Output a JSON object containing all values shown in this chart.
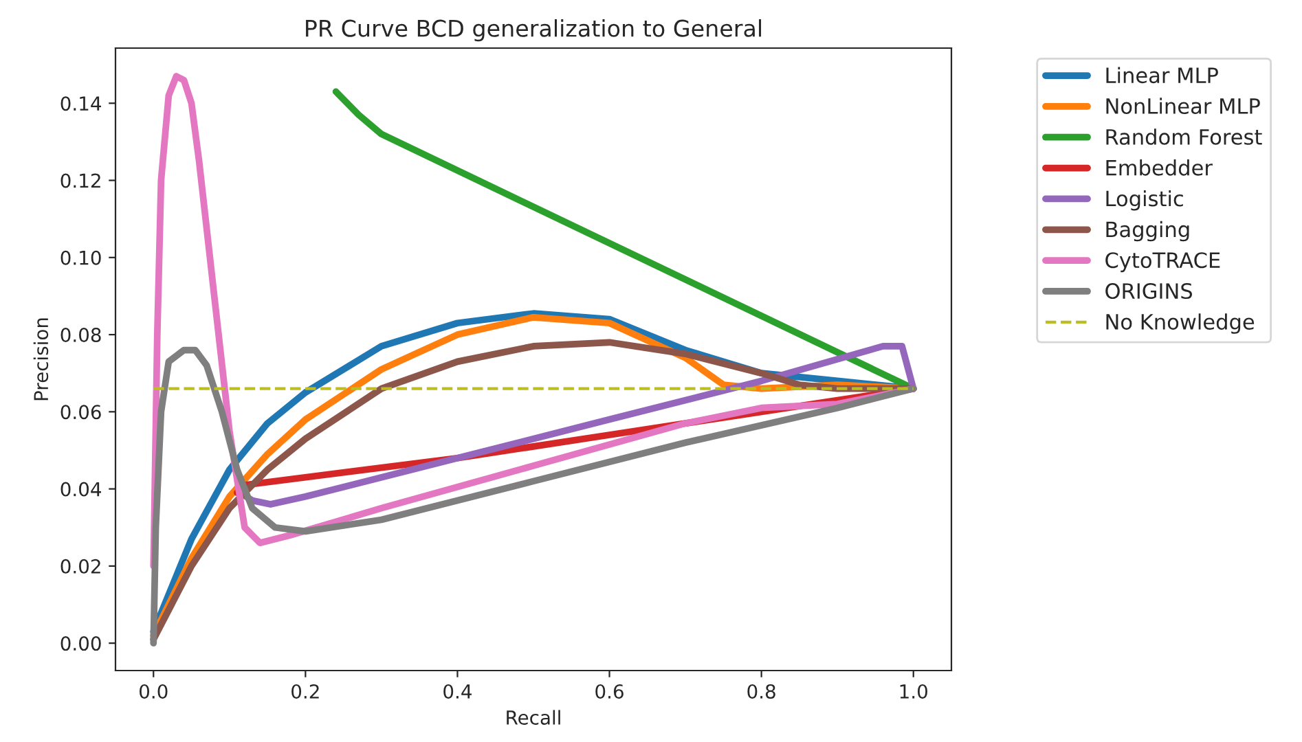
{
  "chart_data": {
    "type": "line",
    "title": "PR Curve BCD generalization to General",
    "xlabel": "Recall",
    "ylabel": "Precision",
    "xlim": [
      -0.05,
      1.05
    ],
    "ylim": [
      -0.0071,
      0.1543
    ],
    "xticks": [
      {
        "value": 0,
        "label": "0.0"
      },
      {
        "value": 0.2,
        "label": "0.2"
      },
      {
        "value": 0.4,
        "label": "0.4"
      },
      {
        "value": 0.6,
        "label": "0.6"
      },
      {
        "value": 0.8,
        "label": "0.8"
      },
      {
        "value": 1,
        "label": "1.0"
      }
    ],
    "yticks": [
      {
        "value": 0,
        "label": "0.00"
      },
      {
        "value": 0.02,
        "label": "0.02"
      },
      {
        "value": 0.04,
        "label": "0.04"
      },
      {
        "value": 0.06,
        "label": "0.06"
      },
      {
        "value": 0.08,
        "label": "0.08"
      },
      {
        "value": 0.1,
        "label": "0.10"
      },
      {
        "value": 0.12,
        "label": "0.12"
      },
      {
        "value": 0.14,
        "label": "0.14"
      }
    ],
    "grid": false,
    "legend": "top right",
    "marker": "none",
    "line_style": "solid",
    "series": [
      {
        "name": "Linear MLP",
        "color": "#1f77b4",
        "x": [
          0,
          0.05,
          0.1,
          0.15,
          0.2,
          0.3,
          0.4,
          0.5,
          0.6,
          0.7,
          0.8,
          0.9,
          1.0
        ],
        "values": [
          0.003,
          0.027,
          0.045,
          0.057,
          0.065,
          0.077,
          0.083,
          0.0855,
          0.084,
          0.076,
          0.07,
          0.068,
          0.066
        ]
      },
      {
        "name": "NonLinear MLP",
        "color": "#ff7f0e",
        "x": [
          0,
          0.05,
          0.1,
          0.15,
          0.2,
          0.3,
          0.4,
          0.5,
          0.6,
          0.7,
          0.75,
          0.8,
          0.9,
          1.0
        ],
        "values": [
          0.002,
          0.022,
          0.038,
          0.049,
          0.058,
          0.071,
          0.08,
          0.0845,
          0.083,
          0.074,
          0.067,
          0.066,
          0.067,
          0.066
        ]
      },
      {
        "name": "Random Forest",
        "color": "#2ca02c",
        "x": [
          0.24,
          0.27,
          0.3,
          1.0
        ],
        "values": [
          0.143,
          0.137,
          0.132,
          0.066
        ]
      },
      {
        "name": "Embedder",
        "color": "#d62728",
        "x": [
          0.11,
          0.12,
          0.4,
          0.6,
          0.8,
          1.0
        ],
        "values": [
          0.039,
          0.041,
          0.048,
          0.054,
          0.06,
          0.066
        ]
      },
      {
        "name": "Logistic",
        "color": "#9467bd",
        "x": [
          0.118,
          0.13,
          0.154,
          0.2,
          0.4,
          0.6,
          0.8,
          0.96,
          0.985,
          1.0
        ],
        "values": [
          0.0385,
          0.037,
          0.036,
          0.038,
          0.048,
          0.058,
          0.068,
          0.077,
          0.077,
          0.066
        ]
      },
      {
        "name": "Bagging",
        "color": "#8c564b",
        "x": [
          0,
          0.05,
          0.1,
          0.15,
          0.2,
          0.3,
          0.4,
          0.5,
          0.6,
          0.7,
          0.8,
          0.85,
          0.9,
          1.0
        ],
        "values": [
          0.001,
          0.02,
          0.035,
          0.045,
          0.053,
          0.066,
          0.073,
          0.077,
          0.078,
          0.075,
          0.07,
          0.067,
          0.066,
          0.066
        ]
      },
      {
        "name": "CytoTRACE",
        "color": "#e377c2",
        "x": [
          0,
          0.005,
          0.01,
          0.02,
          0.03,
          0.04,
          0.05,
          0.06,
          0.08,
          0.1,
          0.12,
          0.14,
          0.18,
          0.3,
          0.5,
          0.7,
          0.8,
          0.9,
          1.0
        ],
        "values": [
          0.02,
          0.08,
          0.12,
          0.142,
          0.147,
          0.146,
          0.14,
          0.125,
          0.09,
          0.055,
          0.03,
          0.026,
          0.028,
          0.035,
          0.046,
          0.057,
          0.061,
          0.062,
          0.066
        ]
      },
      {
        "name": "ORIGINS",
        "color": "#7f7f7f",
        "x": [
          0,
          0.003,
          0.01,
          0.02,
          0.04,
          0.055,
          0.07,
          0.09,
          0.11,
          0.13,
          0.16,
          0.2,
          0.3,
          0.5,
          0.7,
          0.9,
          1.0
        ],
        "values": [
          0,
          0.03,
          0.06,
          0.073,
          0.076,
          0.076,
          0.072,
          0.06,
          0.045,
          0.035,
          0.03,
          0.029,
          0.032,
          0.042,
          0.052,
          0.061,
          0.066
        ]
      },
      {
        "name": "No Knowledge",
        "color": "#bcbd22",
        "line_style": "dashed",
        "x": [
          0,
          1.0
        ],
        "values": [
          0.066,
          0.066
        ]
      }
    ]
  }
}
